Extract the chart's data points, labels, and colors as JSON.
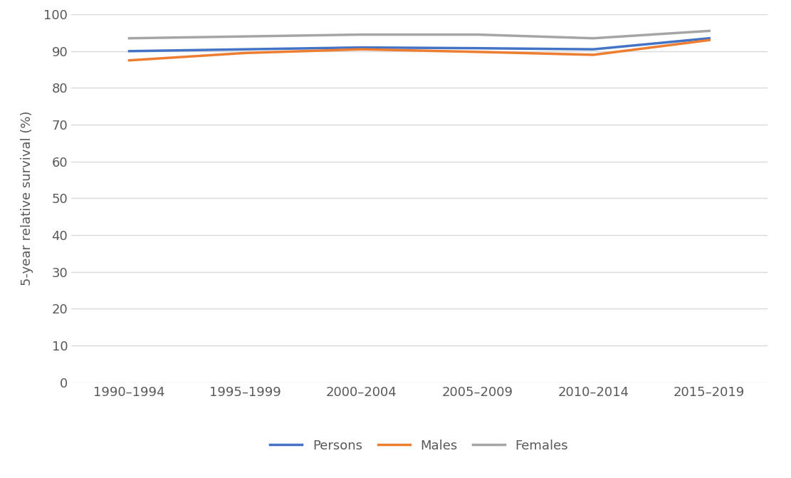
{
  "categories": [
    "1990–1994",
    "1995–1999",
    "2000–2004",
    "2005–2009",
    "2010–2014",
    "2015–2019"
  ],
  "persons": [
    90.0,
    90.5,
    91.0,
    90.8,
    90.5,
    93.5
  ],
  "males": [
    87.5,
    89.5,
    90.5,
    89.8,
    89.0,
    93.0
  ],
  "females": [
    93.5,
    94.0,
    94.5,
    94.5,
    93.5,
    95.5
  ],
  "persons_color": "#4472c4",
  "males_color": "#ed7d31",
  "females_color": "#a5a5a5",
  "ylabel": "5-year relative survival (%)",
  "ylim": [
    0,
    100
  ],
  "yticks": [
    0,
    10,
    20,
    30,
    40,
    50,
    60,
    70,
    80,
    90,
    100
  ],
  "legend_labels": [
    "Persons",
    "Males",
    "Females"
  ],
  "background_color": "#ffffff",
  "grid_color": "#d9d9d9",
  "line_width": 2.5,
  "font_color": "#595959",
  "tick_font_size": 13,
  "ylabel_font_size": 13
}
